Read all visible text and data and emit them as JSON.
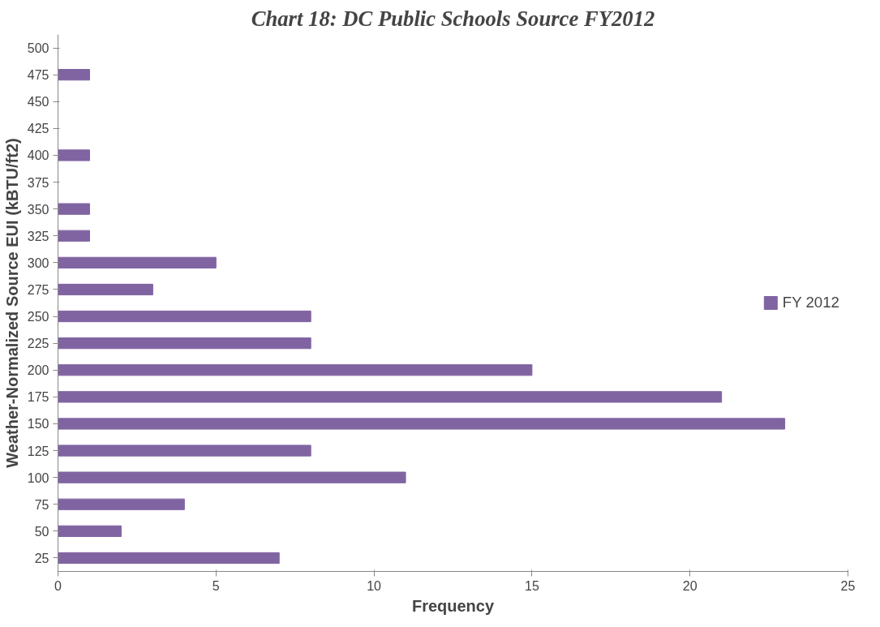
{
  "chart_data": {
    "type": "bar",
    "orientation": "horizontal",
    "title": "Chart 18: DC Public Schools Source FY2012",
    "xlabel": "Frequency",
    "ylabel": "Weather-Normalized Source EUI (kBTU/ft2)",
    "categories": [
      "500",
      "475",
      "450",
      "425",
      "400",
      "375",
      "350",
      "325",
      "300",
      "275",
      "250",
      "225",
      "200",
      "175",
      "150",
      "125",
      "100",
      "75",
      "50",
      "25"
    ],
    "series": [
      {
        "name": "FY 2012",
        "color": "#8064a2",
        "values": [
          0,
          1,
          0,
          0,
          1,
          0,
          1,
          1,
          5,
          3,
          8,
          8,
          15,
          21,
          23,
          8,
          11,
          4,
          2,
          7
        ]
      }
    ],
    "xlim": [
      0,
      25
    ],
    "xticks": [
      0,
      5,
      10,
      15,
      20,
      25
    ],
    "grid": false,
    "legend": "right"
  }
}
